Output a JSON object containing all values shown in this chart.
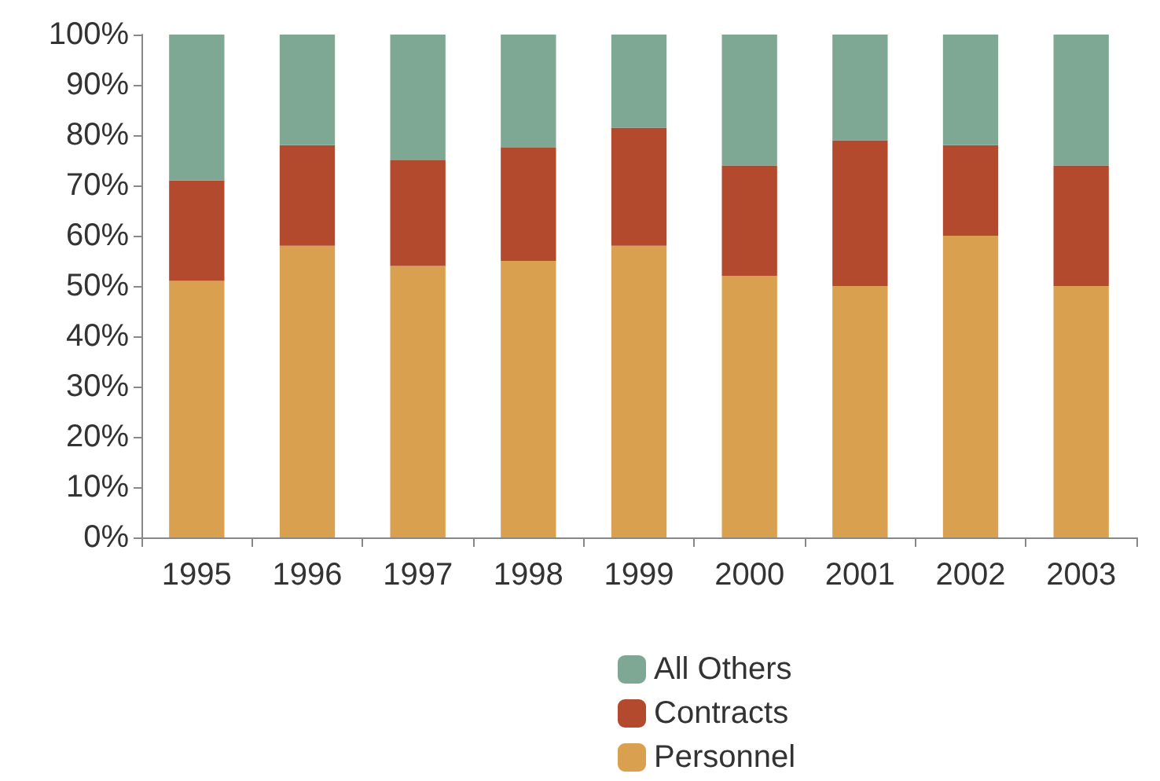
{
  "chart_data": {
    "type": "bar",
    "stacked": true,
    "categories": [
      "1995",
      "1996",
      "1997",
      "1998",
      "1999",
      "2000",
      "2001",
      "2002",
      "2003"
    ],
    "series": [
      {
        "name": "Personnel",
        "color": "#d9a050",
        "values": [
          51,
          58,
          54,
          55,
          58,
          52,
          50,
          60,
          50
        ]
      },
      {
        "name": "Contracts",
        "color": "#b34a2e",
        "values": [
          20,
          20,
          21,
          22.5,
          23.5,
          22,
          29,
          18,
          24
        ]
      },
      {
        "name": "All Others",
        "color": "#7fa894",
        "values": [
          29,
          22,
          25,
          22.5,
          18.5,
          26,
          21,
          22,
          26
        ]
      }
    ],
    "ylim": [
      0,
      100
    ],
    "yticks": [
      {
        "value": 0,
        "label": "0%"
      },
      {
        "value": 10,
        "label": "10%"
      },
      {
        "value": 20,
        "label": "20%"
      },
      {
        "value": 30,
        "label": "30%"
      },
      {
        "value": 40,
        "label": "40%"
      },
      {
        "value": 50,
        "label": "50%"
      },
      {
        "value": 60,
        "label": "60%"
      },
      {
        "value": 70,
        "label": "70%"
      },
      {
        "value": 80,
        "label": "80%"
      },
      {
        "value": 90,
        "label": "90%"
      },
      {
        "value": 100,
        "label": "100%"
      }
    ],
    "grid": false,
    "legend": "bottom"
  }
}
